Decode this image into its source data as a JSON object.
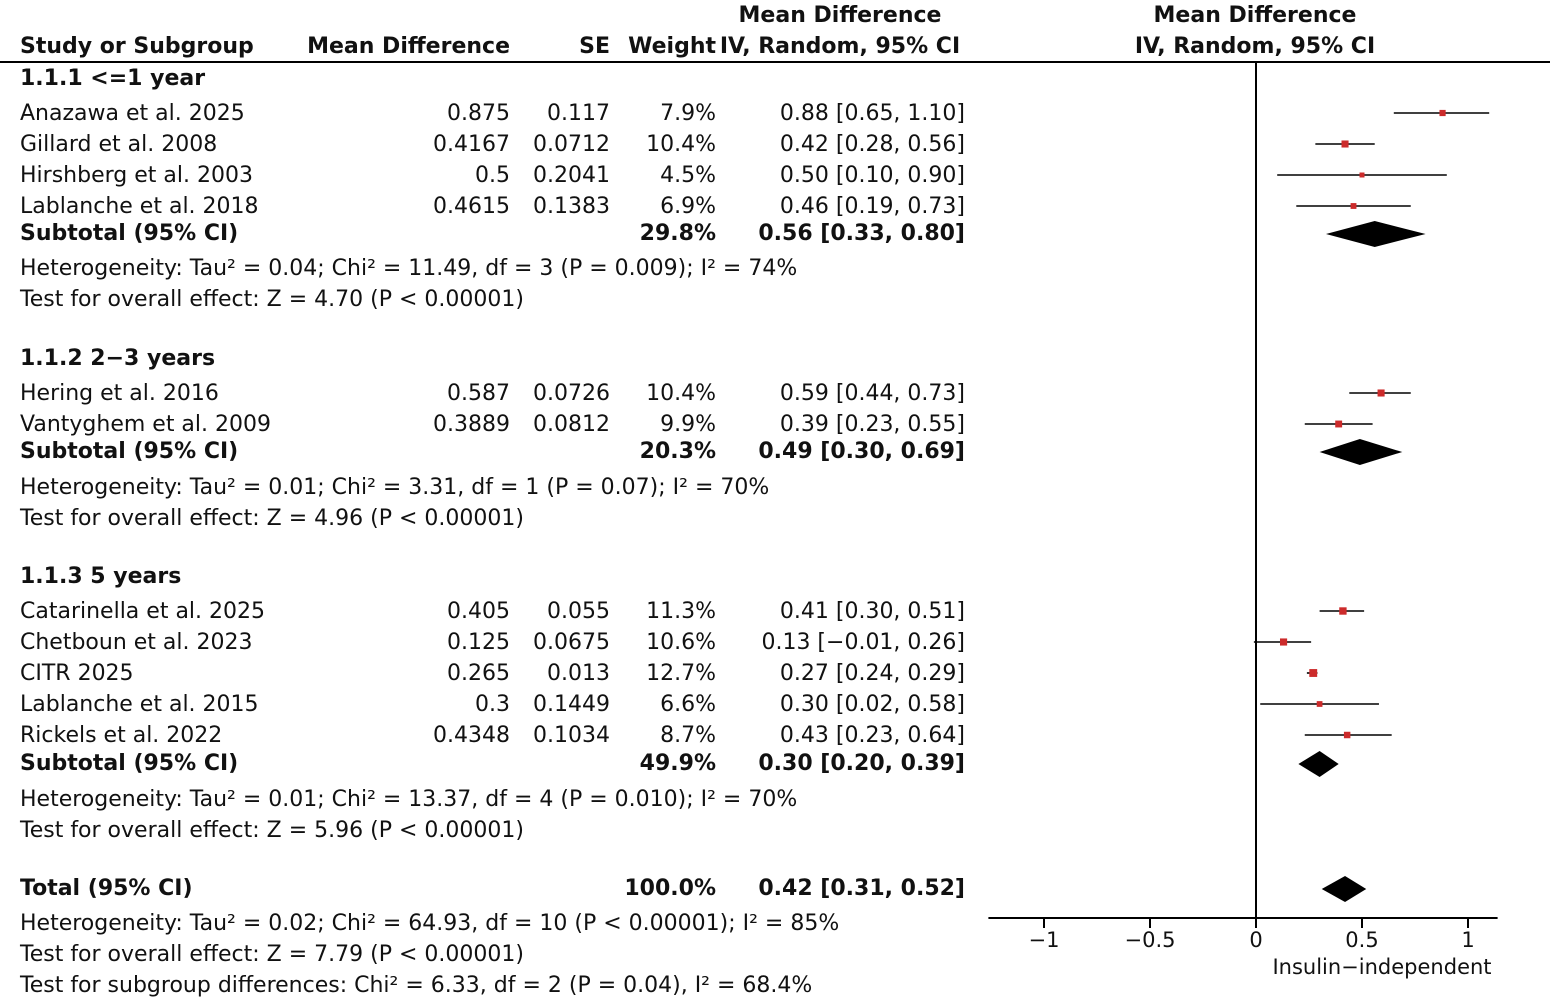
{
  "header": {
    "study": "Study or Subgroup",
    "md": "Mean Difference",
    "se": "SE",
    "weight": "Weight",
    "ci_title1": "Mean Difference",
    "ci_title2": "IV, Random, 95% CI",
    "plot_title1": "Mean Difference",
    "plot_title2": "IV, Random, 95% CI"
  },
  "colors": {
    "marker": "#cc2b2b",
    "line": "#000000",
    "diamond": "#000000"
  },
  "chart_data": {
    "type": "forest",
    "xlim": [
      -1.3,
      1.3
    ],
    "ticks": [
      {
        "value": -1,
        "label": "−1"
      },
      {
        "value": -0.5,
        "label": "−0.5"
      },
      {
        "value": 0,
        "label": "0"
      },
      {
        "value": 0.5,
        "label": "0.5"
      },
      {
        "value": 1,
        "label": "1"
      }
    ],
    "xlabel": "Insulin−independent",
    "groups": [
      {
        "title": "1.1.1 <=1 year",
        "studies": [
          {
            "name": "Anazawa et al. 2025",
            "md": "0.875",
            "se": "0.117",
            "weight": "7.9%",
            "ci": "0.88 [0.65, 1.10]",
            "est": 0.88,
            "lo": 0.65,
            "hi": 1.1
          },
          {
            "name": "Gillard et al. 2008",
            "md": "0.4167",
            "se": "0.0712",
            "weight": "10.4%",
            "ci": "0.42 [0.28, 0.56]",
            "est": 0.42,
            "lo": 0.28,
            "hi": 0.56
          },
          {
            "name": "Hirshberg et al. 2003",
            "md": "0.5",
            "se": "0.2041",
            "weight": "4.5%",
            "ci": "0.50 [0.10, 0.90]",
            "est": 0.5,
            "lo": 0.1,
            "hi": 0.9
          },
          {
            "name": "Lablanche et al. 2018",
            "md": "0.4615",
            "se": "0.1383",
            "weight": "6.9%",
            "ci": "0.46 [0.19, 0.73]",
            "est": 0.46,
            "lo": 0.19,
            "hi": 0.73
          }
        ],
        "subtotal": {
          "label": "Subtotal (95% CI)",
          "weight": "29.8%",
          "ci": "0.56 [0.33, 0.80]",
          "est": 0.56,
          "lo": 0.33,
          "hi": 0.8
        },
        "heterogeneity": "Heterogeneity: Tau² = 0.04; Chi² = 11.49, df = 3 (P = 0.009); I² = 74%",
        "overall": "Test for overall effect: Z = 4.70 (P < 0.00001)"
      },
      {
        "title": "1.1.2 2−3 years",
        "studies": [
          {
            "name": "Hering et al. 2016",
            "md": "0.587",
            "se": "0.0726",
            "weight": "10.4%",
            "ci": "0.59 [0.44, 0.73]",
            "est": 0.59,
            "lo": 0.44,
            "hi": 0.73
          },
          {
            "name": "Vantyghem et al. 2009",
            "md": "0.3889",
            "se": "0.0812",
            "weight": "9.9%",
            "ci": "0.39 [0.23, 0.55]",
            "est": 0.39,
            "lo": 0.23,
            "hi": 0.55
          }
        ],
        "subtotal": {
          "label": "Subtotal (95% CI)",
          "weight": "20.3%",
          "ci": "0.49 [0.30, 0.69]",
          "est": 0.49,
          "lo": 0.3,
          "hi": 0.69
        },
        "heterogeneity": "Heterogeneity: Tau² = 0.01; Chi² = 3.31, df = 1 (P = 0.07); I² = 70%",
        "overall": "Test for overall effect: Z = 4.96 (P < 0.00001)"
      },
      {
        "title": "1.1.3 5 years",
        "studies": [
          {
            "name": "Catarinella et al. 2025",
            "md": "0.405",
            "se": "0.055",
            "weight": "11.3%",
            "ci": "0.41 [0.30, 0.51]",
            "est": 0.41,
            "lo": 0.3,
            "hi": 0.51
          },
          {
            "name": "Chetboun et al. 2023",
            "md": "0.125",
            "se": "0.0675",
            "weight": "10.6%",
            "ci": "0.13 [−0.01, 0.26]",
            "est": 0.13,
            "lo": -0.01,
            "hi": 0.26
          },
          {
            "name": "CITR 2025",
            "md": "0.265",
            "se": "0.013",
            "weight": "12.7%",
            "ci": "0.27 [0.24, 0.29]",
            "est": 0.27,
            "lo": 0.24,
            "hi": 0.29
          },
          {
            "name": "Lablanche et al. 2015",
            "md": "0.3",
            "se": "0.1449",
            "weight": "6.6%",
            "ci": "0.30 [0.02, 0.58]",
            "est": 0.3,
            "lo": 0.02,
            "hi": 0.58
          },
          {
            "name": "Rickels et al. 2022",
            "md": "0.4348",
            "se": "0.1034",
            "weight": "8.7%",
            "ci": "0.43 [0.23, 0.64]",
            "est": 0.43,
            "lo": 0.23,
            "hi": 0.64
          }
        ],
        "subtotal": {
          "label": "Subtotal (95% CI)",
          "weight": "49.9%",
          "ci": "0.30 [0.20, 0.39]",
          "est": 0.3,
          "lo": 0.2,
          "hi": 0.39
        },
        "heterogeneity": "Heterogeneity: Tau² = 0.01; Chi² = 13.37, df = 4 (P = 0.010); I² = 70%",
        "overall": "Test for overall effect: Z = 5.96 (P < 0.00001)"
      }
    ],
    "total": {
      "label": "Total (95% CI)",
      "weight": "100.0%",
      "ci": "0.42 [0.31, 0.52]",
      "est": 0.42,
      "lo": 0.31,
      "hi": 0.52,
      "heterogeneity": "Heterogeneity: Tau² = 0.02; Chi² = 64.93, df = 10 (P < 0.00001); I² = 85%",
      "overall": "Test for overall effect: Z = 7.79 (P < 0.00001)",
      "subgroup": "Test for subgroup differences: Chi² = 6.33, df = 2 (P = 0.04), I² = 68.4%"
    }
  }
}
